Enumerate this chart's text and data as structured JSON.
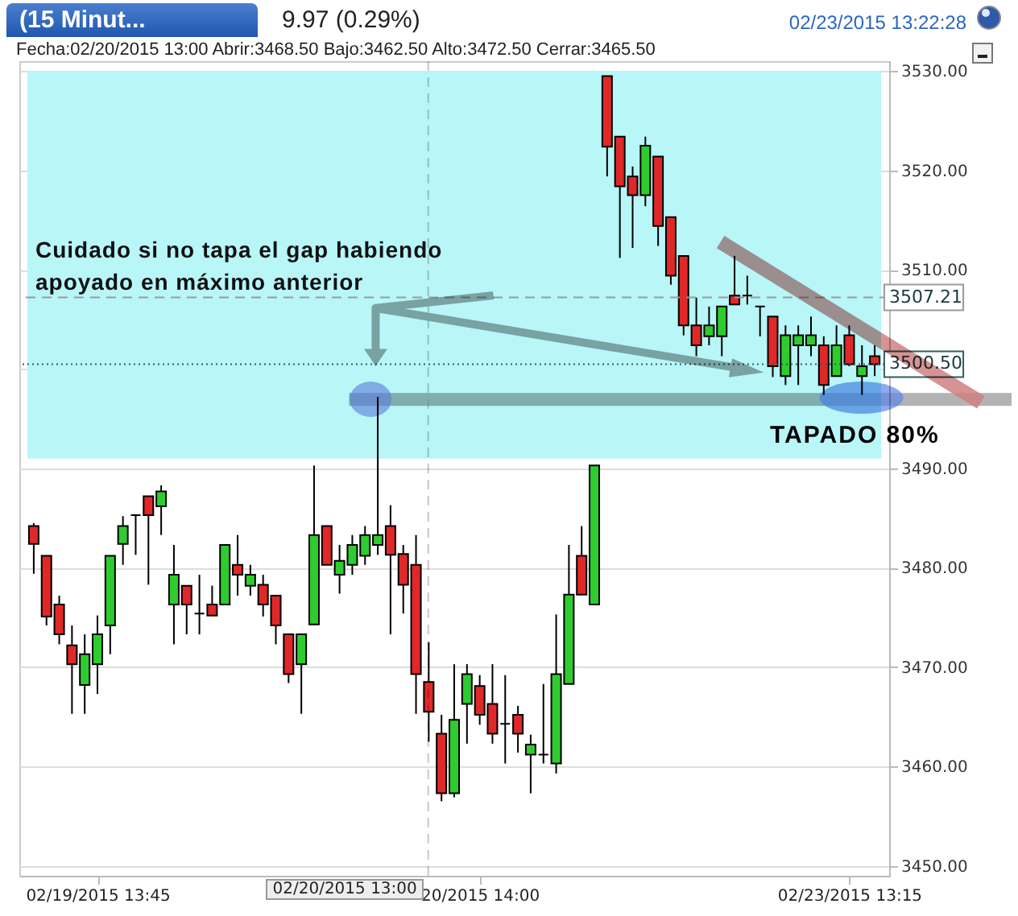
{
  "chart_data": {
    "type": "candlestick",
    "title": "(15 Minut...",
    "subtitle": "9.97 (0.29%)",
    "annotations": [
      "02/23/2015 13:22:28",
      "Fecha:02/20/2015 13:00 Abrir:3468.50 Bajo:3462.50 Alto:3472.50 Cerrar:3465.50",
      "Cuidado si no tapa el gap habiendo apoyado en máximo anterior",
      "TAPADO 80%",
      "02/20/2015 13:00"
    ],
    "categories": [
      null,
      null,
      null,
      null,
      null,
      "02/19/2015 13:45",
      null,
      null,
      null,
      null,
      null,
      null,
      null,
      null,
      null,
      null,
      null,
      null,
      null,
      null,
      null,
      null,
      null,
      null,
      null,
      null,
      null,
      null,
      null,
      null,
      null,
      null,
      null,
      null,
      null,
      "20/2015 14:00",
      null,
      null,
      null,
      null,
      null,
      null,
      null,
      null,
      null,
      null,
      null,
      null,
      null,
      null,
      null,
      null,
      null,
      null,
      null,
      null,
      null,
      null,
      null,
      null,
      null,
      null,
      null,
      null,
      "02/23/2015 13:15",
      null,
      null
    ],
    "ohlc": [
      [
        3484.2,
        3484.5,
        3479.4,
        3482.4
      ],
      [
        3481.2,
        3481.2,
        3474.2,
        3475.1
      ],
      [
        3476.3,
        3477.2,
        3472.3,
        3473.3
      ],
      [
        3472.2,
        3474.2,
        3465.3,
        3470.3
      ],
      [
        3468.2,
        3473.3,
        3465.3,
        3471.3
      ],
      [
        3470.3,
        3475.2,
        3467.3,
        3473.3
      ],
      [
        3474.2,
        3481.2,
        3471.3,
        3481.2
      ],
      [
        3482.4,
        3485.2,
        3480.3,
        3484.2
      ],
      [
        3485.3,
        3485.3,
        3481.3,
        3485.3
      ],
      [
        3487.2,
        3487.2,
        3478.3,
        3485.3
      ],
      [
        3486.2,
        3488.3,
        3483.3,
        3487.7
      ],
      [
        3476.3,
        3482.3,
        3472.3,
        3479.3
      ],
      [
        3478.2,
        3478.2,
        3473.3,
        3476.3
      ],
      [
        3475.4,
        3479.3,
        3473.3,
        3475.4
      ],
      [
        3476.3,
        3478.2,
        3475.2,
        3475.2
      ],
      [
        3476.3,
        3482.3,
        3476.3,
        3482.3
      ],
      [
        3480.3,
        3483.3,
        3477.2,
        3479.3
      ],
      [
        3478.2,
        3480.3,
        3477.2,
        3479.3
      ],
      [
        3478.3,
        3479.3,
        3475.1,
        3476.3
      ],
      [
        3477.2,
        3477.2,
        3472.3,
        3474.2
      ],
      [
        3473.3,
        3473.3,
        3468.4,
        3469.3
      ],
      [
        3470.3,
        3473.3,
        3465.3,
        3473.3
      ],
      [
        3474.3,
        3490.3,
        3474.2,
        3483.3
      ],
      [
        3484.2,
        3484.2,
        3480.3,
        3480.3
      ],
      [
        3479.3,
        3482.3,
        3477.4,
        3480.7
      ],
      [
        3480.3,
        3483.3,
        3479.3,
        3482.3
      ],
      [
        3481.2,
        3484.2,
        3480.3,
        3483.3
      ],
      [
        3482.3,
        3497.2,
        3481.3,
        3483.3
      ],
      [
        3484.2,
        3486.3,
        3473.3,
        3481.3
      ],
      [
        3481.4,
        3482.3,
        3475.4,
        3478.3
      ],
      [
        3480.3,
        3483.3,
        3465.3,
        3469.3
      ],
      [
        3468.5,
        3472.5,
        3462.5,
        3465.5
      ],
      [
        3463.3,
        3465.2,
        3456.5,
        3457.3
      ],
      [
        3457.3,
        3470.3,
        3456.9,
        3464.7
      ],
      [
        3466.3,
        3470.3,
        3462.3,
        3469.3
      ],
      [
        3468.1,
        3469.2,
        3464.2,
        3465.2
      ],
      [
        3466.3,
        3470.3,
        3462.3,
        3463.3
      ],
      [
        3464.3,
        3469.2,
        3460.3,
        3464.3
      ],
      [
        3465.2,
        3466.1,
        3461.4,
        3463.3
      ],
      [
        3461.2,
        3463.2,
        3457.3,
        3462.2
      ],
      [
        3461.2,
        3468.3,
        3460.3,
        3461.2
      ],
      [
        3460.3,
        3475.3,
        3459.3,
        3469.3
      ],
      [
        3468.3,
        3482.3,
        3468.3,
        3477.3
      ],
      [
        3481.2,
        3484.2,
        3477.3,
        3477.3
      ],
      [
        3476.3,
        3490.3,
        3476.3,
        3490.3
      ],
      [
        3529.5,
        3529.5,
        3519.4,
        3522.4
      ],
      [
        3523.4,
        3523.4,
        3511.2,
        3518.4
      ],
      [
        3519.4,
        3520.4,
        3512.2,
        3517.5
      ],
      [
        3517.5,
        3523.4,
        3516.4,
        3522.5
      ],
      [
        3521.4,
        3521.4,
        3512.4,
        3514.4
      ],
      [
        3515.3,
        3515.3,
        3508.5,
        3509.4
      ],
      [
        3511.4,
        3511.4,
        3503.4,
        3504.4
      ],
      [
        3504.4,
        3507.2,
        3501.3,
        3502.4
      ],
      [
        3503.3,
        3506.3,
        3502.4,
        3504.4
      ],
      [
        3503.3,
        3506.3,
        3501.3,
        3506.3
      ],
      [
        3507.4,
        3511.4,
        3506.5,
        3506.5
      ],
      [
        3507.4,
        3509.4,
        3506.5,
        3507.4
      ],
      [
        3506.3,
        3506.3,
        3503.3,
        3506.3
      ],
      [
        3505.3,
        3505.3,
        3499.2,
        3500.3
      ],
      [
        3499.3,
        3504.4,
        3498.4,
        3503.4
      ],
      [
        3502.4,
        3504.4,
        3498.4,
        3503.4
      ],
      [
        3502.4,
        3505.3,
        3501.3,
        3503.4
      ],
      [
        3502.4,
        3503.3,
        3497.4,
        3498.4
      ],
      [
        3499.3,
        3504.4,
        3499.3,
        3502.4
      ],
      [
        3503.4,
        3504.4,
        3500.3,
        3500.5
      ],
      [
        3499.3,
        3502.4,
        3497.4,
        3500.3
      ],
      [
        3501.3,
        3502.4,
        3499.3,
        3500.5
      ]
    ],
    "colors": [
      "#e02828",
      "#e02828",
      "#e02828",
      "#e02828",
      "#2ecc2e",
      "#2ecc2e",
      "#2ecc2e",
      "#2ecc2e",
      "#000000",
      "#e02828",
      "#2ecc2e",
      "#2ecc2e",
      "#e02828",
      "#000000",
      "#e02828",
      "#2ecc2e",
      "#e02828",
      "#2ecc2e",
      "#e02828",
      "#e02828",
      "#e02828",
      "#2ecc2e",
      "#2ecc2e",
      "#e02828",
      "#2ecc2e",
      "#2ecc2e",
      "#2ecc2e",
      "#2ecc2e",
      "#e02828",
      "#e02828",
      "#e02828",
      "#e02828",
      "#e02828",
      "#2ecc2e",
      "#2ecc2e",
      "#e02828",
      "#e02828",
      "#000000",
      "#e02828",
      "#2ecc2e",
      "#000000",
      "#2ecc2e",
      "#2ecc2e",
      "#e02828",
      "#2ecc2e",
      "#e02828",
      "#e02828",
      "#e02828",
      "#2ecc2e",
      "#e02828",
      "#e02828",
      "#e02828",
      "#e02828",
      "#2ecc2e",
      "#2ecc2e",
      "#e02828",
      "#000000",
      "#000000",
      "#e02828",
      "#2ecc2e",
      "#2ecc2e",
      "#2ecc2e",
      "#e02828",
      "#2ecc2e",
      "#e02828",
      "#2ecc2e",
      "#e02828"
    ],
    "ylim": [
      3449,
      3531
    ],
    "yticks": [
      {
        "value": 3450,
        "label": "3450.00"
      },
      {
        "value": 3460,
        "label": "3460.00"
      },
      {
        "value": 3470,
        "label": "3470.00"
      },
      {
        "value": 3480,
        "label": "3480.00"
      },
      {
        "value": 3490,
        "label": "3490.00"
      },
      {
        "value": 3500,
        "label": null
      },
      {
        "value": 3510,
        "label": "3510.00"
      },
      {
        "value": 3520,
        "label": "3520.00"
      },
      {
        "value": 3530,
        "label": "3530.00"
      }
    ],
    "grid": "y",
    "ref_lines": [
      {
        "axis": "y",
        "value": 3507.21,
        "label": "3507.21",
        "color": "#9a9a9a",
        "line_style": "dashed"
      },
      {
        "axis": "y",
        "value": 3500.5,
        "label": "3500.50",
        "color": "#2f5f5f",
        "line_style": "dotted"
      }
    ],
    "bands": [
      {
        "axis": "y",
        "from": 3491,
        "to": 3530,
        "color": "#b8f6f8"
      }
    ]
  }
}
